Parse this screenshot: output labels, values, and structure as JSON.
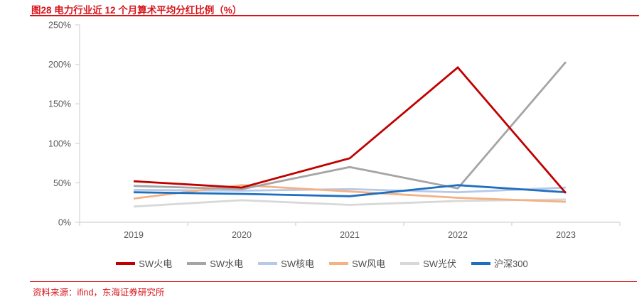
{
  "figure": {
    "title": "图28  电力行业近 12 个月算术平均分红比例（%）",
    "source": "资料来源：ifind，东海证券研究所"
  },
  "style": {
    "accent_red": "#d7141a",
    "axis_line_color": "#d9d9d9",
    "axis_text_color": "#595959"
  },
  "chart_data": {
    "type": "line",
    "categories": [
      "2019",
      "2020",
      "2021",
      "2022",
      "2023"
    ],
    "series": [
      {
        "name": "SW火电",
        "color": "#c00000",
        "values": [
          52,
          44,
          81,
          196,
          37
        ]
      },
      {
        "name": "SW水电",
        "color": "#a5a5a5",
        "values": [
          46,
          42,
          70,
          43,
          203
        ]
      },
      {
        "name": "SW核电",
        "color": "#b7c9e8",
        "values": [
          41,
          40,
          42,
          38,
          44
        ]
      },
      {
        "name": "SW风电",
        "color": "#f5b183",
        "values": [
          30,
          47,
          39,
          31,
          26
        ]
      },
      {
        "name": "SW光伏",
        "color": "#d8d8d8",
        "values": [
          20,
          28,
          22,
          27,
          29
        ]
      },
      {
        "name": "沪深300",
        "color": "#1e6fc0",
        "values": [
          38,
          36,
          33,
          47,
          38
        ]
      }
    ],
    "title": "电力行业近 12 个月算术平均分红比例（%）",
    "xlabel": "",
    "ylabel": "",
    "ylim": [
      0,
      250
    ],
    "yticks": [
      "0%",
      "50%",
      "100%",
      "150%",
      "200%",
      "250%"
    ],
    "grid": false,
    "legend_position": "bottom"
  }
}
